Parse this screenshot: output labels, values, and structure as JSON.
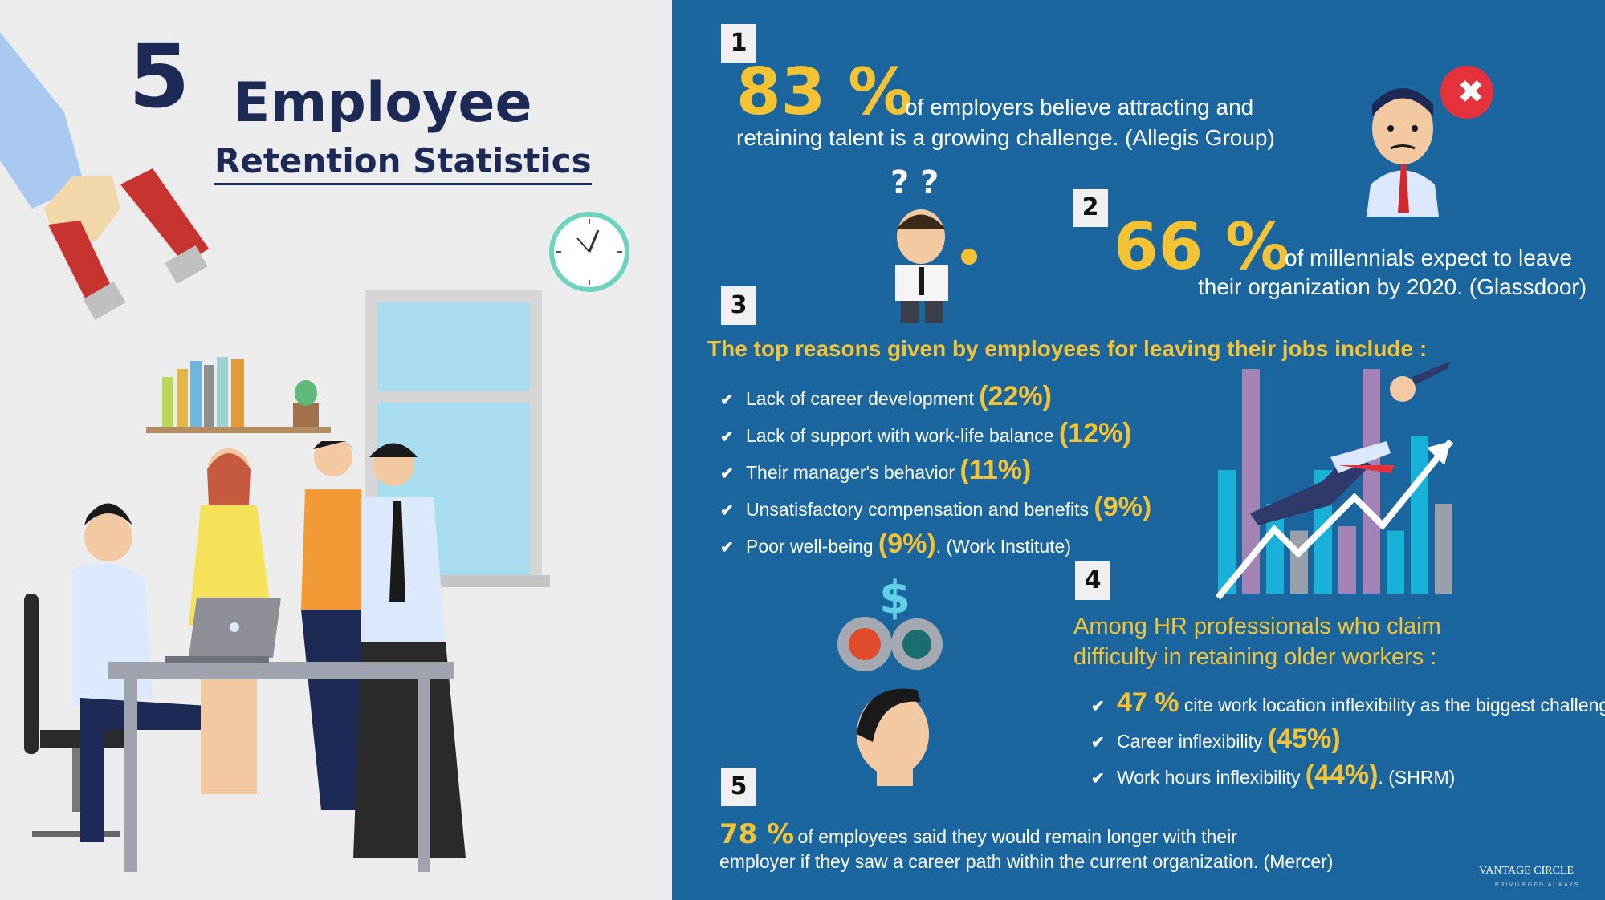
{
  "title": {
    "number": "5",
    "word": "Employee",
    "subtitle": "Retention Statistics"
  },
  "stats": {
    "s1": {
      "box": "1",
      "pct": "83 %",
      "line1": "of employers believe attracting and",
      "line2": "retaining talent is a growing challenge. (Allegis Group)"
    },
    "s2": {
      "box": "2",
      "pct": "66 %",
      "line1": "of millennials expect to leave",
      "line2": "their organization by 2020. (Glassdoor)"
    },
    "s3": {
      "box": "3",
      "heading": "The top reasons given by employees for leaving their jobs include :",
      "items": [
        {
          "text": "Lack of career development",
          "pct": "(22%)",
          "suffix": ""
        },
        {
          "text": "Lack of support with work-life balance",
          "pct": "(12%)",
          "suffix": ""
        },
        {
          "text": "Their manager's behavior",
          "pct": "(11%)",
          "suffix": ""
        },
        {
          "text": "Unsatisfactory compensation and benefits",
          "pct": "(9%)",
          "suffix": ""
        },
        {
          "text": "Poor well-being",
          "pct": "(9%)",
          "suffix": ". (Work Institute)"
        }
      ]
    },
    "s4": {
      "box": "4",
      "heading_line1": "Among HR professionals who claim",
      "heading_line2": "difficulty in retaining older workers :",
      "items": [
        {
          "pct": "47 %",
          "text": "cite work location inflexibility as the biggest challenge,",
          "pct_first": true,
          "suffix": ""
        },
        {
          "pct": "(45%)",
          "text": "Career inflexibility",
          "pct_first": false,
          "suffix": ""
        },
        {
          "pct": "(44%)",
          "text": "Work hours inflexibility",
          "pct_first": false,
          "suffix": ". (SHRM)"
        }
      ]
    },
    "s5": {
      "box": "5",
      "pct": "78 %",
      "line1": "of employees said they would remain longer with their",
      "line2": "employer if they saw a career path within the current organization. (Mercer)"
    }
  },
  "icons": {
    "questions": "? ?",
    "dollar": "$",
    "close": "✖"
  },
  "brand": {
    "name": "VANTAGE CIRCLE",
    "tagline": "PRIVILEGED ALWAYS"
  },
  "chart_data": {
    "type": "bar",
    "categories": [
      "1",
      "2",
      "3",
      "4",
      "5",
      "6",
      "7",
      "8",
      "9",
      "10"
    ],
    "values": [
      0.55,
      1.0,
      0.4,
      0.28,
      0.55,
      0.3,
      1.0,
      0.28,
      0.7,
      0.4
    ]
  },
  "colors": {
    "left_bg": "#ececec",
    "right_bg": "#1c66a0",
    "accent_yellow": "#f4c333",
    "title_navy": "#1d2a56"
  }
}
